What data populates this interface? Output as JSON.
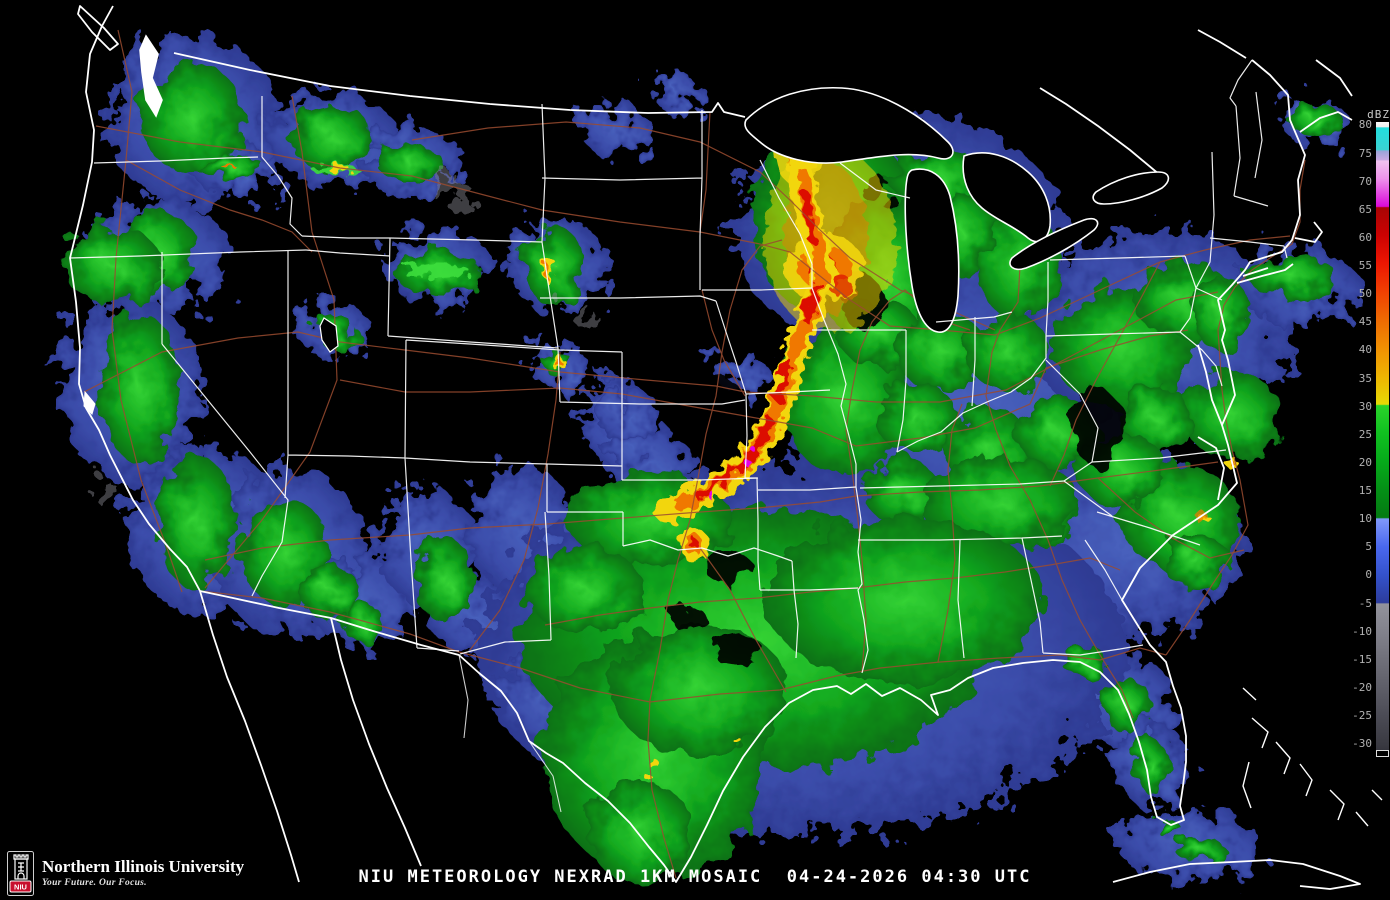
{
  "map": {
    "description": "CONUS NEXRAD composite reflectivity radar mosaic",
    "background_color": "#000000",
    "state_border_color": "#ffffff",
    "highway_color": "#9a4c30",
    "water_outline_color": "#ffffff"
  },
  "caption": {
    "text": "NIU METEOROLOGY NEXRAD 1KM MOSAIC  04-24-2026 04:30 UTC",
    "source": "NIU METEOROLOGY",
    "product": "NEXRAD 1KM MOSAIC",
    "date": "04-24-2026",
    "time": "04:30 UTC"
  },
  "colorbar": {
    "title": "dBZ",
    "unit": "dBZ",
    "tick_values": [
      80,
      75,
      70,
      65,
      60,
      55,
      50,
      45,
      40,
      35,
      30,
      25,
      20,
      15,
      10,
      5,
      0,
      -5,
      -10,
      -15,
      -20,
      -25,
      -30
    ],
    "top_dbz": 80.6,
    "bottom_dbz": -31.4,
    "gradient_stops": [
      {
        "p": 0,
        "c": "#f8f8f8"
      },
      {
        "p": 0.8,
        "c": "#f0f0f0"
      },
      {
        "p": 0.9,
        "c": "#22dede"
      },
      {
        "p": 4.4,
        "c": "#3ad2d2"
      },
      {
        "p": 4.6,
        "c": "#9aa4d8"
      },
      {
        "p": 6.0,
        "c": "#c9a8e2"
      },
      {
        "p": 6.2,
        "c": "#f0c2ee"
      },
      {
        "p": 9.0,
        "c": "#ee92ea"
      },
      {
        "p": 13.4,
        "c": "#da0ada"
      },
      {
        "p": 13.6,
        "c": "#a80404"
      },
      {
        "p": 18.0,
        "c": "#cc0202"
      },
      {
        "p": 22.4,
        "c": "#ec1602"
      },
      {
        "p": 26.9,
        "c": "#f04002"
      },
      {
        "p": 31.4,
        "c": "#ee6a02"
      },
      {
        "p": 35.9,
        "c": "#f09002"
      },
      {
        "p": 40.4,
        "c": "#eeb402"
      },
      {
        "p": 44.8,
        "c": "#e6da04"
      },
      {
        "p": 45.0,
        "c": "#2ad42a"
      },
      {
        "p": 49.4,
        "c": "#10c020"
      },
      {
        "p": 53.9,
        "c": "#06aa1a"
      },
      {
        "p": 58.4,
        "c": "#049016"
      },
      {
        "p": 62.8,
        "c": "#047a12"
      },
      {
        "p": 63.0,
        "c": "#8098fa"
      },
      {
        "p": 67.4,
        "c": "#4a68ee"
      },
      {
        "p": 71.9,
        "c": "#3452cc"
      },
      {
        "p": 76.3,
        "c": "#2c3c9c"
      },
      {
        "p": 76.5,
        "c": "#92929c"
      },
      {
        "p": 80.9,
        "c": "#82828c"
      },
      {
        "p": 85.3,
        "c": "#70707a"
      },
      {
        "p": 89.8,
        "c": "#5e5e68"
      },
      {
        "p": 94.3,
        "c": "#4b4b55"
      },
      {
        "p": 98.8,
        "c": "#3a3a42"
      },
      {
        "p": 100,
        "c": "#32323a"
      }
    ]
  },
  "logo": {
    "institution": "Northern Illinois University",
    "tagline": "Your Future. Our Focus.",
    "monogram": "NIU",
    "brand_red": "#c8102e"
  }
}
